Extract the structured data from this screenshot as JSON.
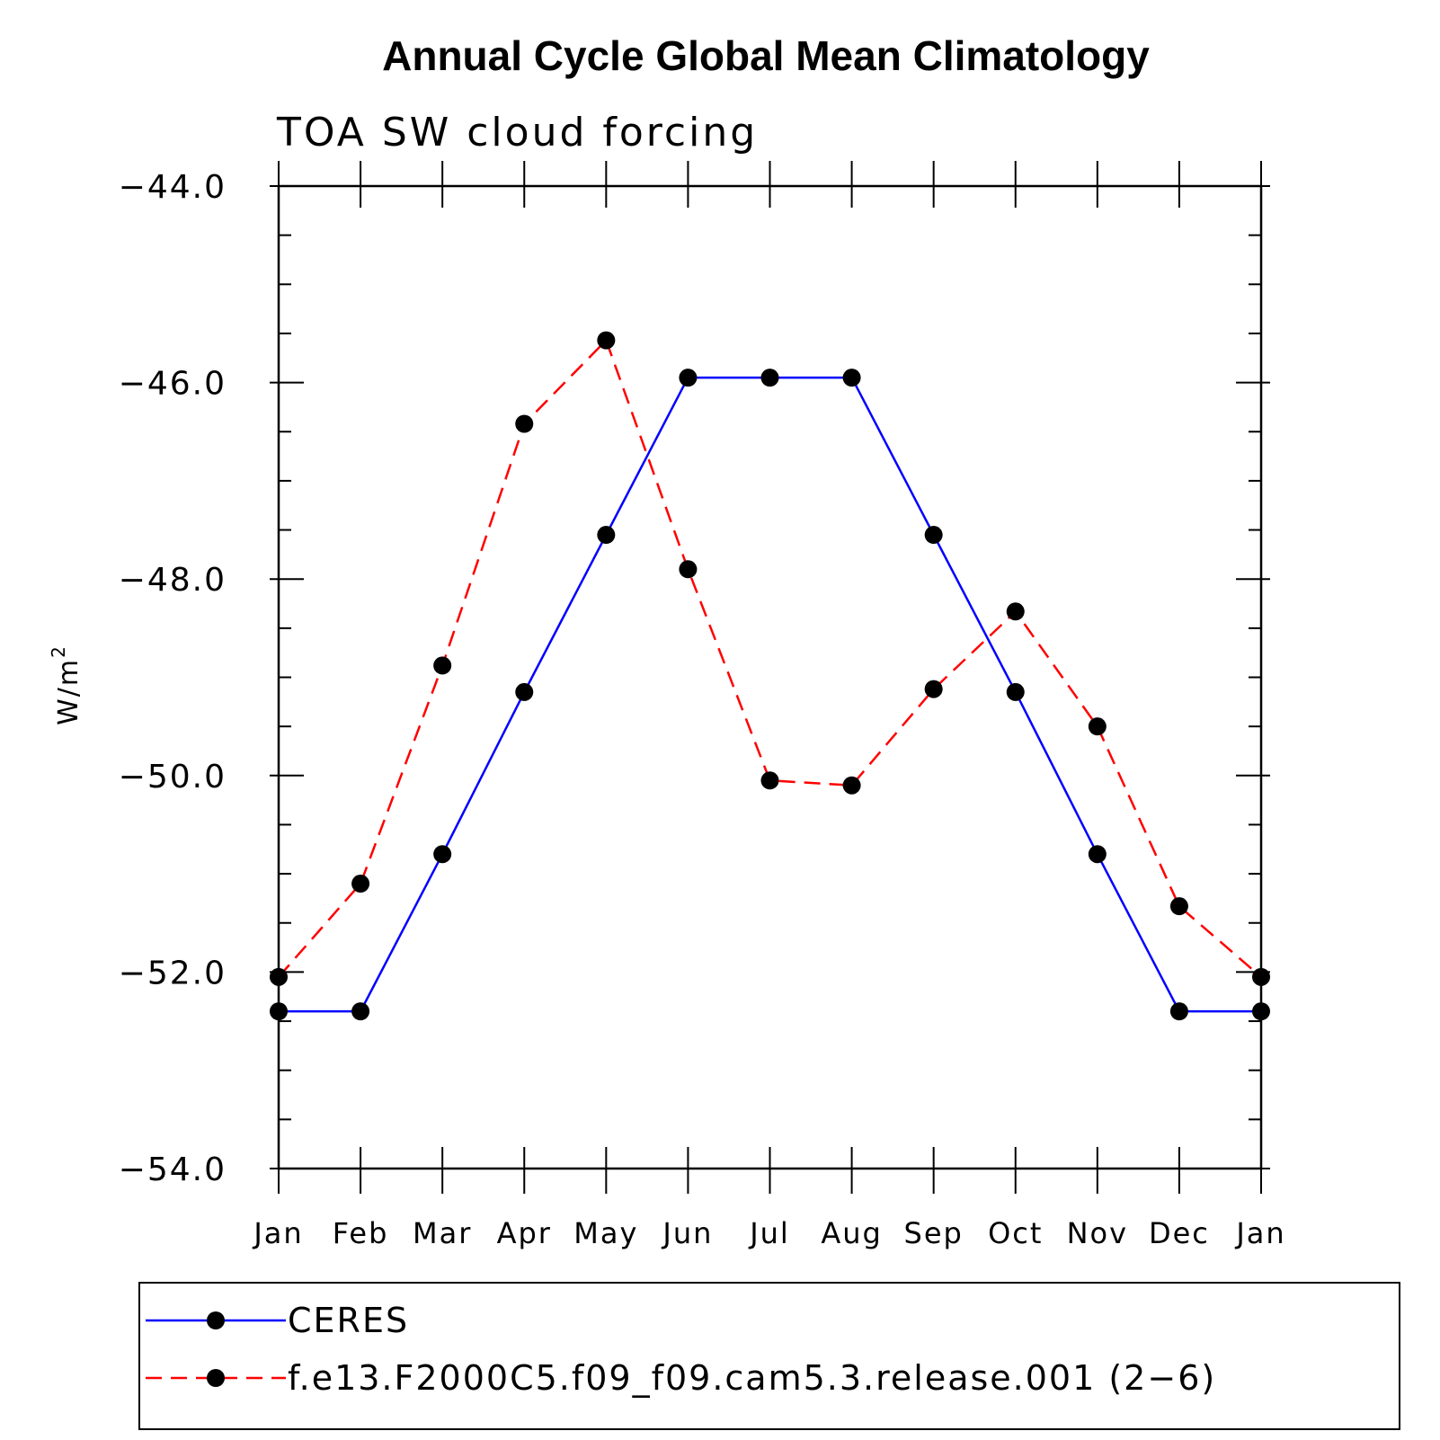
{
  "chart_data": {
    "type": "line",
    "title": "Annual Cycle Global Mean Climatology",
    "subtitle": "TOA SW cloud forcing",
    "ylabel": "W/m",
    "ylabel_superscript": "2",
    "ylim": [
      -54.0,
      -44.0
    ],
    "yticks": [
      -44.0,
      -46.0,
      -48.0,
      -50.0,
      -52.0,
      -54.0
    ],
    "ytick_labels": [
      "−44.0",
      "−46.0",
      "−48.0",
      "−50.0",
      "−52.0",
      "−54.0"
    ],
    "yminor_step": 0.5,
    "categories": [
      "Jan",
      "Feb",
      "Mar",
      "Apr",
      "May",
      "Jun",
      "Jul",
      "Aug",
      "Sep",
      "Oct",
      "Nov",
      "Dec",
      "Jan"
    ],
    "series": [
      {
        "name": "CERES",
        "color": "#0000ff",
        "dash": "solid",
        "values": [
          -52.4,
          -52.4,
          -50.8,
          -49.15,
          -47.55,
          -45.95,
          -45.95,
          -45.95,
          -47.55,
          -49.15,
          -50.8,
          -52.4,
          -52.4
        ]
      },
      {
        "name": "f.e13.F2000C5.f09_f09.cam5.3.release.001 (2−6)",
        "color": "#ff0000",
        "dash": "dashed",
        "values": [
          -52.05,
          -51.1,
          -48.88,
          -46.42,
          -45.57,
          -47.9,
          -50.05,
          -50.1,
          -49.12,
          -48.33,
          -49.5,
          -51.33,
          -52.05
        ]
      }
    ],
    "marker_color": "#000000",
    "legend_position": "bottom"
  }
}
